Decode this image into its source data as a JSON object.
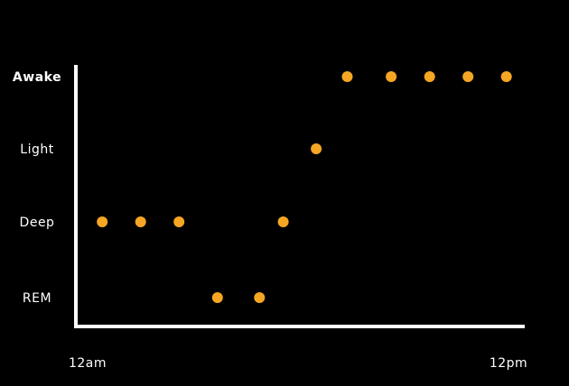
{
  "chart_data": {
    "type": "scatter",
    "title": "",
    "xlabel": "",
    "ylabel": "",
    "y_categories": [
      "REM",
      "Deep",
      "Light",
      "Awake"
    ],
    "x_tick_labels": [
      "12am",
      "12pm"
    ],
    "xlim": [
      0,
      12
    ],
    "points": [
      {
        "x": 0.35,
        "y": "Deep"
      },
      {
        "x": 1.4,
        "y": "Deep"
      },
      {
        "x": 2.45,
        "y": "Deep"
      },
      {
        "x": 3.5,
        "y": "REM"
      },
      {
        "x": 4.65,
        "y": "REM"
      },
      {
        "x": 5.3,
        "y": "Deep"
      },
      {
        "x": 6.2,
        "y": "Light"
      },
      {
        "x": 7.05,
        "y": "Awake"
      },
      {
        "x": 8.25,
        "y": "Awake"
      },
      {
        "x": 9.3,
        "y": "Awake"
      },
      {
        "x": 10.35,
        "y": "Awake"
      },
      {
        "x": 11.4,
        "y": "Awake"
      }
    ],
    "grid": false,
    "marker_color": "#f5a623",
    "axis_color": "#ffffff",
    "background": "#000000"
  }
}
